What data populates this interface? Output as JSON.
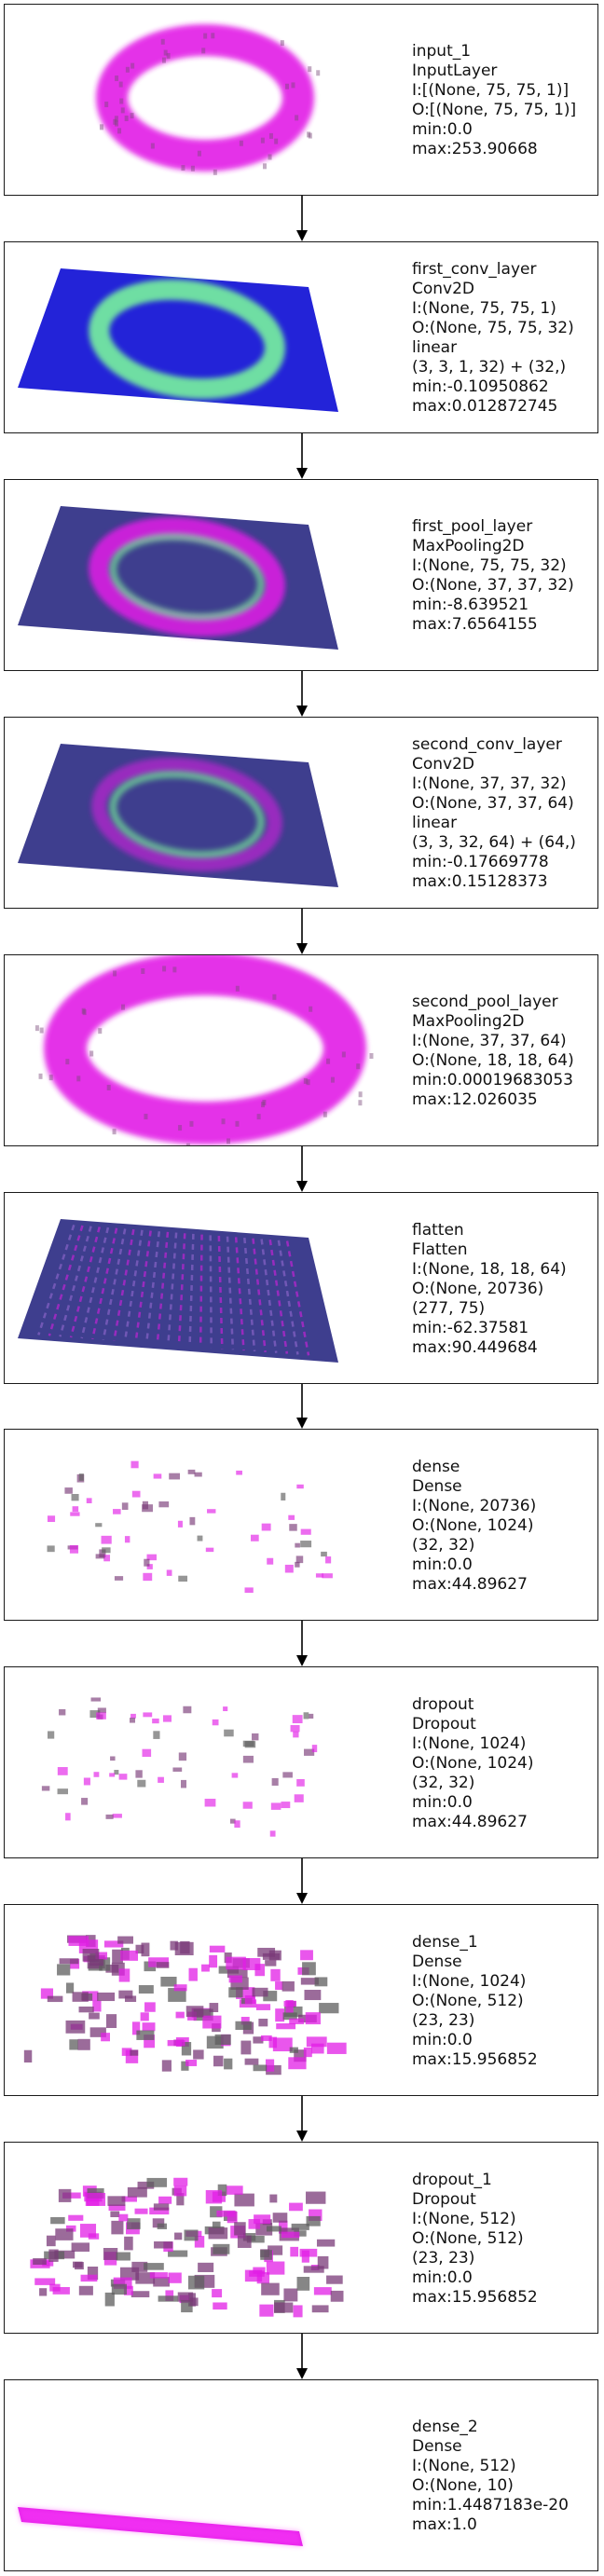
{
  "layers": [
    {
      "name": "input_1",
      "type": "InputLayer",
      "lines": [
        "I:[(None, 75, 75, 1)]",
        "O:[(None, 75, 75, 1)]",
        "min:0.0",
        "max:253.90668"
      ],
      "viz": "ring-magenta"
    },
    {
      "name": "first_conv_layer",
      "type": "Conv2D",
      "lines": [
        "I:(None, 75, 75, 1)",
        "O:(None, 75, 75, 32)",
        "linear",
        "(3, 3, 1, 32) + (32,)",
        "min:-0.10950862",
        "max:0.012872745"
      ],
      "viz": "plane-blue-green"
    },
    {
      "name": "first_pool_layer",
      "type": "MaxPooling2D",
      "lines": [
        "I:(None, 75, 75, 32)",
        "O:(None, 37, 37, 32)",
        "min:-8.639521",
        "max:7.6564155"
      ],
      "viz": "plane-dark-ring"
    },
    {
      "name": "second_conv_layer",
      "type": "Conv2D",
      "lines": [
        "I:(None, 37, 37, 32)",
        "O:(None, 37, 37, 64)",
        "linear",
        "(3, 3, 32, 64) + (64,)",
        "min:-0.17669778",
        "max:0.15128373"
      ],
      "viz": "plane-dark-faint"
    },
    {
      "name": "second_pool_layer",
      "type": "MaxPooling2D",
      "lines": [
        "I:(None, 37, 37, 64)",
        "O:(None, 18, 18, 64)",
        "min:0.00019683053",
        "max:12.026035"
      ],
      "viz": "ring-blocky"
    },
    {
      "name": "flatten",
      "type": "Flatten",
      "lines": [
        "I:(None, 18, 18, 64)",
        "O:(None, 20736)",
        "(277, 75)",
        "min:-62.37581",
        "max:90.449684"
      ],
      "viz": "plane-stripes"
    },
    {
      "name": "dense",
      "type": "Dense",
      "lines": [
        "I:(None, 20736)",
        "O:(None, 1024)",
        "(32, 32)",
        "min:0.0",
        "max:44.89627"
      ],
      "viz": "sparse"
    },
    {
      "name": "dropout",
      "type": "Dropout",
      "lines": [
        "I:(None, 1024)",
        "O:(None, 1024)",
        "(32, 32)",
        "min:0.0",
        "max:44.89627"
      ],
      "viz": "sparse"
    },
    {
      "name": "dense_1",
      "type": "Dense",
      "lines": [
        "I:(None, 1024)",
        "O:(None, 512)",
        "(23, 23)",
        "min:0.0",
        "max:15.956852"
      ],
      "viz": "dense-blocks"
    },
    {
      "name": "dropout_1",
      "type": "Dropout",
      "lines": [
        "I:(None, 512)",
        "O:(None, 512)",
        "(23, 23)",
        "min:0.0",
        "max:15.956852"
      ],
      "viz": "dense-blocks"
    },
    {
      "name": "dense_2",
      "type": "Dense",
      "lines": [
        "I:(None, 512)",
        "O:(None, 10)",
        "min:1.4487183e-20",
        "max:1.0"
      ],
      "viz": "bar"
    }
  ],
  "colors": {
    "magenta": "#e21de6",
    "blue": "#2323d8",
    "green": "#7dff9a",
    "navy": "#1c1c7a",
    "border": "#1a1a1a"
  }
}
